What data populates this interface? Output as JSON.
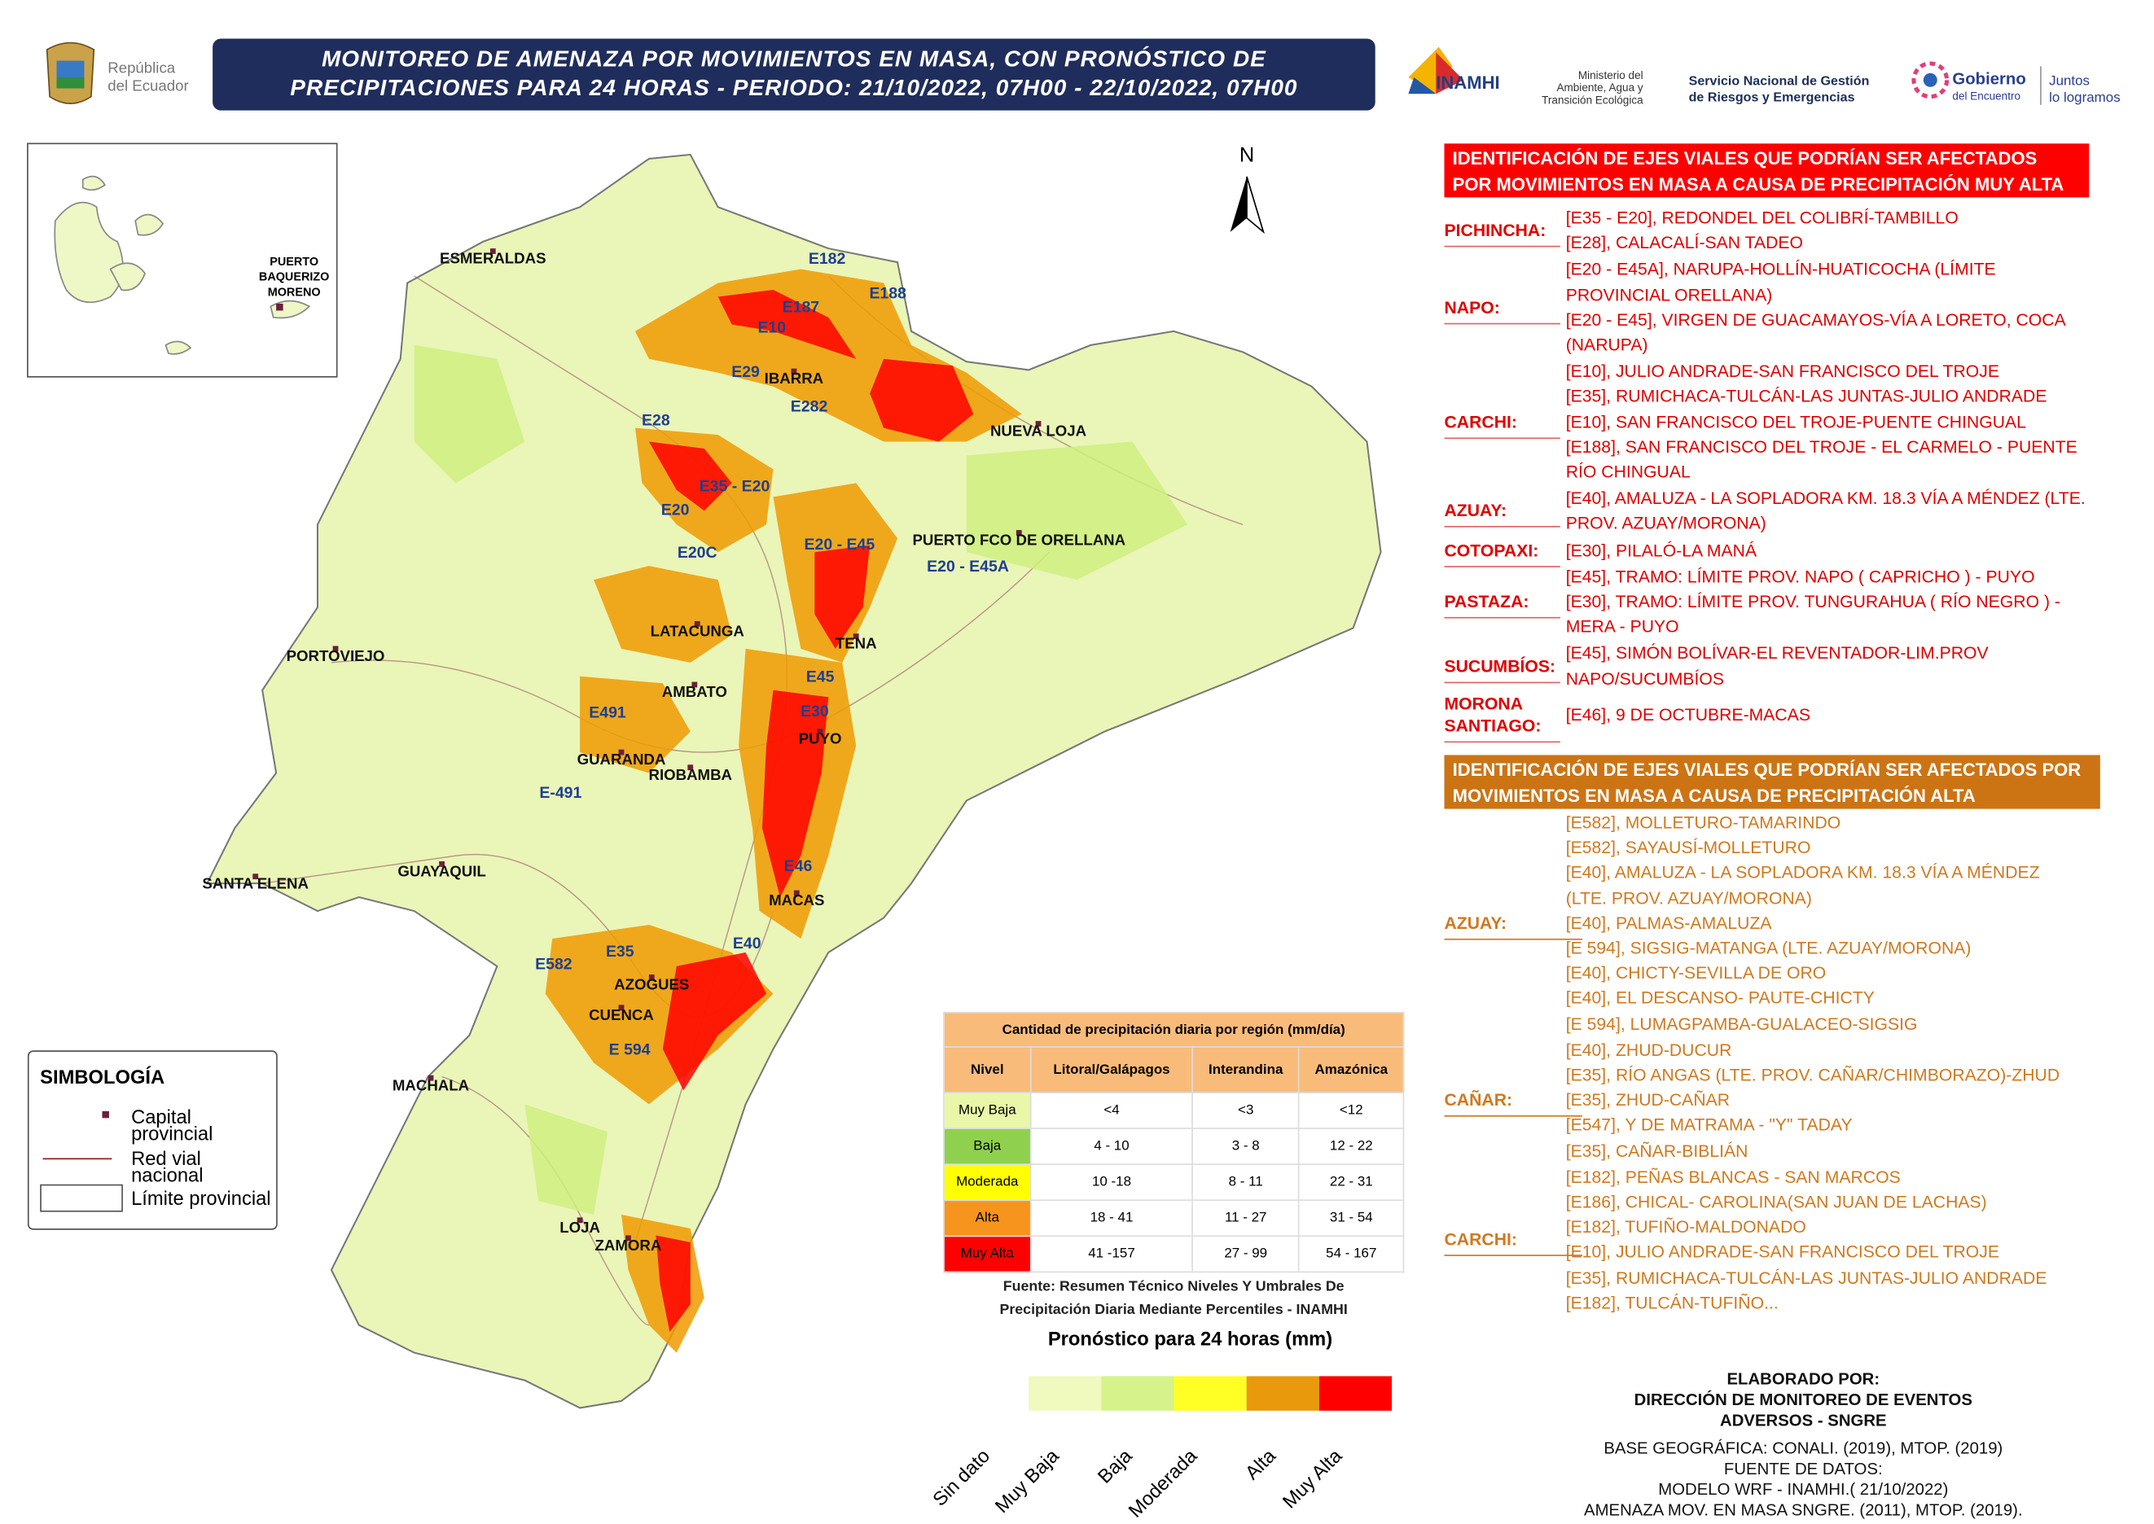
{
  "header": {
    "title": [
      "MONITOREO DE AMENAZA POR MOVIMIENTOS EN MASA, CON PRONÓSTICO DE",
      "PRECIPITACIONES PARA 24 HORAS - PERIODO: 21/10/2022, 07H00 - 22/10/2022, 07H00"
    ]
  },
  "logos": {
    "republica": [
      "República",
      "del Ecuador"
    ],
    "inamhi": "INAMHI",
    "ministerio": [
      "Ministerio del",
      "Ambiente, Agua y",
      "Transición Ecológica"
    ],
    "sngre": [
      "Servicio Nacional de Gestión",
      "de Riesgos y Emergencias"
    ],
    "gobierno": [
      "Gobierno",
      "del Encuentro"
    ],
    "juntos": [
      "Juntos",
      "lo logramos"
    ]
  },
  "map": {
    "north": "N",
    "places": [
      "ESMERALDAS",
      "IBARRA",
      "NUEVA LOJA",
      "PUERTO FCO DE ORELLANA",
      "LATACUNGA",
      "TENA",
      "AMBATO",
      "PORTOVIEJO",
      "PUYO",
      "GUARANDA",
      "RIOBAMBA",
      "GUAYAQUIL",
      "SANTA ELENA",
      "MACAS",
      "AZOGUES",
      "CUENCA",
      "MACHALA",
      "LOJA",
      "ZAMORA"
    ],
    "roads": [
      "E182",
      "E188",
      "E187",
      "E10",
      "E29",
      "E282",
      "E28",
      "E35 - E20",
      "E20",
      "E20C",
      "E20 - E45",
      "E20 - E45A",
      "E45",
      "E491",
      "E30",
      "E-491",
      "E46",
      "E40",
      "E35",
      "E582",
      "E 594"
    ],
    "inset_label": [
      "PUERTO",
      "BAQUERIZO",
      "MORENO"
    ]
  },
  "symbology": {
    "title": "SIMBOLOGÍA",
    "items": [
      "Capital provincial",
      "Red vial nacional",
      "Límite provincial"
    ]
  },
  "precip_table": {
    "title": "Cantidad de precipitación diaria por región (mm/día)",
    "headers": [
      "Nivel",
      "Litoral/Galápagos",
      "Interandina",
      "Amazónica"
    ],
    "rows": [
      [
        "Muy Baja",
        "<4",
        "<3",
        "<12"
      ],
      [
        "Baja",
        "4 - 10",
        "3 - 8",
        "12 - 22"
      ],
      [
        "Moderada",
        "10 -18",
        "8 - 11",
        "22 - 31"
      ],
      [
        "Alta",
        "18 - 41",
        "11 - 27",
        "31 - 54"
      ],
      [
        "Muy Alta",
        "41 -157",
        "27 - 99",
        "54 - 167"
      ]
    ],
    "source": [
      "Fuente: Resumen Técnico Niveles Y Umbrales De",
      "Precipitación Diaria Mediante Percentiles - INAMHI"
    ]
  },
  "forecast_scale": {
    "title": "Pronóstico para 24 horas (mm)",
    "labels": [
      "Sin dato",
      "Muy Baja",
      "Baja",
      "Moderada",
      "Alta",
      "Muy Alta"
    ]
  },
  "roads_muy_alta": {
    "title": "IDENTIFICACIÓN DE EJES VIALES QUE PODRÍAN SER AFECTADOS POR MOVIMIENTOS EN MASA A CAUSA DE  PRECIPITACIÓN MUY ALTA",
    "groups": [
      {
        "province": "PICHINCHA:",
        "roads": [
          "[E35 - E20], REDONDEL DEL COLIBRÍ-TAMBILLO",
          "[E28], CALACALÍ-SAN TADEO"
        ]
      },
      {
        "province": "NAPO:",
        "roads": [
          "[E20 - E45A], NARUPA-HOLLÍN-HUATICOCHA (LÍMITE PROVINCIAL ORELLANA)",
          "[E20 - E45], VIRGEN DE GUACAMAYOS-VÍA A LORETO, COCA (NARUPA)"
        ]
      },
      {
        "province": "CARCHI:",
        "roads": [
          "[E10], JULIO ANDRADE-SAN FRANCISCO DEL TROJE",
          "[E35], RUMICHACA-TULCÁN-LAS JUNTAS-JULIO ANDRADE",
          "[E10], SAN FRANCISCO DEL TROJE-PUENTE CHINGUAL",
          "[E188], SAN FRANCISCO DEL TROJE - EL CARMELO - PUENTE RÍO CHINGUAL"
        ]
      },
      {
        "province": "AZUAY:",
        "roads": [
          "[E40], AMALUZA - LA SOPLADORA KM. 18.3 VÍA A MÉNDEZ (LTE. PROV. AZUAY/MORONA)"
        ]
      },
      {
        "province": "COTOPAXI:",
        "roads": [
          "[E30], PILALÓ-LA MANÁ"
        ]
      },
      {
        "province": "PASTAZA:",
        "roads": [
          "[E45], TRAMO: LÍMITE PROV. NAPO ( CAPRICHO ) - PUYO",
          "[E30], TRAMO: LÍMITE PROV. TUNGURAHUA ( RÍO NEGRO ) - MERA - PUYO"
        ]
      },
      {
        "province": "SUCUMBÍOS:",
        "roads": [
          "[E45], SIMÓN BOLÍVAR-EL REVENTADOR-LIM.PROV NAPO/SUCUMBÍOS"
        ]
      },
      {
        "province": "MORONA SANTIAGO:",
        "roads": [
          "[E46], 9 DE OCTUBRE-MACAS"
        ]
      }
    ]
  },
  "roads_alta": {
    "title": "IDENTIFICACIÓN DE EJES VIALES QUE PODRÍAN SER AFECTADOS POR MOVIMIENTOS EN MASA A CAUSA DE  PRECIPITACIÓN ALTA",
    "groups": [
      {
        "province": "AZUAY:",
        "roads": [
          "[E582], MOLLETURO-TAMARINDO",
          "[E582], SAYAUSÍ-MOLLETURO",
          "[E40], AMALUZA - LA SOPLADORA KM. 18.3 VÍA A MÉNDEZ (LTE. PROV. AZUAY/MORONA)",
          "[E40], PALMAS-AMALUZA",
          "[E 594], SIGSIG-MATANGA (LTE. AZUAY/MORONA)",
          "[E40], CHICTY-SEVILLA DE ORO",
          "[E40], EL DESCANSO- PAUTE-CHICTY",
          "[E 594], LUMAGPAMBA-GUALACEO-SIGSIG"
        ]
      },
      {
        "province": "CAÑAR:",
        "roads": [
          "[E40], ZHUD-DUCUR",
          "[E35], RÍO ANGAS (LTE. PROV. CAÑAR/CHIMBORAZO)-ZHUD",
          "[E35], ZHUD-CAÑAR",
          "[E547], Y DE MATRAMA - \"Y\" TADAY",
          "[E35], CAÑAR-BIBLIÁN"
        ]
      },
      {
        "province": "CARCHI:",
        "roads": [
          "[E182], PEÑAS BLANCAS - SAN MARCOS",
          "[E186], CHICAL- CAROLINA(SAN JUAN DE LACHAS)",
          "[E182], TUFIÑO-MALDONADO",
          "[E10], JULIO ANDRADE-SAN FRANCISCO DEL TROJE",
          "[E35], RUMICHACA-TULCÁN-LAS JUNTAS-JULIO ANDRADE",
          "[E182], TULCÁN-TUFIÑO..."
        ]
      }
    ]
  },
  "credits": {
    "prepared_by": "ELABORADO POR:",
    "office": [
      "DIRECCIÓN DE MONITOREO DE EVENTOS",
      "ADVERSOS - SNGRE"
    ],
    "base": "BASE GEOGRÁFICA: CONALI. (2019), MTOP. (2019)",
    "sources_title": "FUENTE DE DATOS:",
    "sources": [
      "MODELO WRF - INAMHI.( 21/10/2022)",
      "AMENAZA MOV. EN MASA SNGRE. (2011), MTOP. (2019)."
    ]
  }
}
